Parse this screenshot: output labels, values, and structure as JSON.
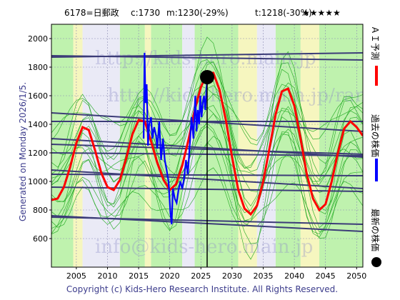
{
  "header": {
    "code_name": "6178=日郵政",
    "current": "c:1730",
    "median": "m:1230(-29%)",
    "target": "t:1218(-30%)",
    "rating": "★★★★★"
  },
  "generated_label": "Generated on Monday 2026/1/5.",
  "copyright": "Copyright (c) Kids-Hero Research Institute. All Rights Reserved.",
  "watermarks": [
    "http://kids-hero.main.jp",
    "http://kids-hero.main.jp/ranking.html",
    "info@kids-hero.main.jp"
  ],
  "legend": {
    "ai_forecast": "ＡＩ予測",
    "past_price": "過去の株価",
    "latest_price": "最新の株価"
  },
  "colors": {
    "ai_forecast": "#ff0000",
    "past_price": "#0000ff",
    "latest_price": "#000000",
    "trend_lines": "#3c3c78",
    "ensemble": "#22aa22",
    "band_green": "#b4f0a0",
    "band_yellow": "#f5f5b4",
    "copyright": "#3c3c8c"
  },
  "chart_data": {
    "type": "line",
    "title": "",
    "xlim": [
      2001,
      2051
    ],
    "ylim": [
      400,
      2100
    ],
    "x_ticks": [
      2005,
      2010,
      2015,
      2020,
      2025,
      2030,
      2035,
      2040,
      2045,
      2050
    ],
    "y_ticks": [
      600,
      800,
      1000,
      1200,
      1400,
      1600,
      1800,
      2000
    ],
    "series": [
      {
        "name": "ＡＩ予測",
        "color": "#ff0000",
        "x": [
          2001,
          2002,
          2003,
          2004,
          2005,
          2006,
          2007,
          2008,
          2009,
          2010,
          2011,
          2012,
          2013,
          2014,
          2015,
          2016,
          2017,
          2018,
          2019,
          2020,
          2021,
          2022,
          2023,
          2024,
          2025,
          2026,
          2027,
          2028,
          2029,
          2030,
          2031,
          2032,
          2033,
          2034,
          2035,
          2036,
          2037,
          2038,
          2039,
          2040,
          2041,
          2042,
          2043,
          2044,
          2045,
          2046,
          2047,
          2048,
          2049,
          2050,
          2051
        ],
        "y": [
          870,
          880,
          960,
          1100,
          1270,
          1380,
          1360,
          1220,
          1060,
          960,
          940,
          1010,
          1160,
          1330,
          1430,
          1420,
          1280,
          1130,
          1010,
          940,
          980,
          1110,
          1290,
          1500,
          1660,
          1760,
          1760,
          1640,
          1430,
          1170,
          940,
          810,
          770,
          830,
          1000,
          1230,
          1470,
          1630,
          1650,
          1530,
          1300,
          1050,
          880,
          800,
          840,
          1000,
          1200,
          1370,
          1420,
          1380,
          1320
        ]
      },
      {
        "name": "過去の株価",
        "color": "#0000ff",
        "x": [
          2015.8,
          2015.95,
          2016.1,
          2016.3,
          2016.5,
          2016.7,
          2017.0,
          2017.2,
          2017.5,
          2017.8,
          2018.0,
          2018.3,
          2018.6,
          2018.9,
          2019.2,
          2019.5,
          2019.8,
          2020.1,
          2020.3,
          2020.5,
          2020.8,
          2021.1,
          2021.4,
          2021.7,
          2022.0,
          2022.3,
          2022.6,
          2022.9,
          2023.2,
          2023.5,
          2023.8,
          2024.1,
          2024.3,
          2024.5,
          2024.7,
          2024.9,
          2025.1,
          2025.3,
          2025.5,
          2025.7,
          2025.9,
          2026.0
        ],
        "y": [
          1300,
          1900,
          1550,
          1680,
          1250,
          1400,
          1450,
          1300,
          1380,
          1320,
          1230,
          1420,
          1150,
          1300,
          1150,
          1080,
          1000,
          780,
          700,
          950,
          880,
          850,
          940,
          1000,
          950,
          1020,
          1150,
          1050,
          1250,
          1450,
          1300,
          1600,
          1350,
          1500,
          1400,
          1600,
          1450,
          1550,
          1600,
          1500,
          1650,
          1700
        ]
      }
    ],
    "latest_point": {
      "x": 2026.0,
      "y": 1730
    }
  }
}
